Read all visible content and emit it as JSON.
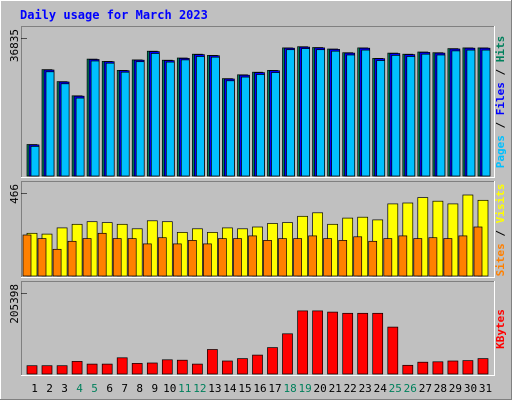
{
  "title": "Daily usage for March 2023",
  "colors": {
    "background": "#c0c0c0",
    "title": "#0000ff",
    "hits": "#00805c",
    "files": "#0000ff",
    "pages": "#00c0ff",
    "visits": "#ffff00",
    "sites": "#ff8000",
    "kbytes": "#ff0000",
    "weekend_label": "#00805c",
    "weekday_label": "#000000"
  },
  "chart_data": [
    {
      "type": "bar",
      "panel": "top",
      "ylabel": [
        "Pages",
        "Files",
        "Hits"
      ],
      "ytick": "36835",
      "ylim": [
        0,
        36835
      ],
      "categories": [
        "1",
        "2",
        "3",
        "4",
        "5",
        "6",
        "7",
        "8",
        "9",
        "10",
        "11",
        "12",
        "13",
        "14",
        "15",
        "16",
        "17",
        "18",
        "19",
        "20",
        "21",
        "22",
        "23",
        "24",
        "25",
        "26",
        "27",
        "28",
        "29",
        "30",
        "31"
      ],
      "series": [
        {
          "name": "Hits",
          "values": [
            8400,
            28400,
            25200,
            21400,
            31200,
            30600,
            28200,
            31000,
            33300,
            30900,
            31500,
            32500,
            32200,
            26000,
            27000,
            27700,
            28200,
            34200,
            34500,
            34300,
            33900,
            32900,
            34200,
            31400,
            32800,
            32500,
            33100,
            32900,
            34000,
            34200,
            34200
          ]
        },
        {
          "name": "Files",
          "values": [
            8300,
            28300,
            25100,
            21300,
            31100,
            30500,
            28100,
            30900,
            33200,
            30800,
            31400,
            32400,
            32100,
            25900,
            26900,
            27600,
            28100,
            34100,
            34400,
            34200,
            33800,
            32800,
            34100,
            31300,
            32700,
            32400,
            33000,
            32800,
            33900,
            34100,
            34100
          ]
        },
        {
          "name": "Pages",
          "values": [
            7900,
            27800,
            24600,
            20800,
            30700,
            30100,
            27700,
            30500,
            32700,
            30400,
            31000,
            31900,
            31700,
            25400,
            26400,
            27100,
            27600,
            33700,
            34000,
            33700,
            33300,
            32300,
            33600,
            30800,
            32200,
            31900,
            32500,
            32300,
            33400,
            33600,
            33600
          ]
        }
      ]
    },
    {
      "type": "bar",
      "panel": "middle",
      "ylabel": [
        "Sites",
        "Visits"
      ],
      "ytick": "466",
      "ylim": [
        0,
        466
      ],
      "categories": [
        "1",
        "2",
        "3",
        "4",
        "5",
        "6",
        "7",
        "8",
        "9",
        "10",
        "11",
        "12",
        "13",
        "14",
        "15",
        "16",
        "17",
        "18",
        "19",
        "20",
        "21",
        "22",
        "23",
        "24",
        "25",
        "26",
        "27",
        "28",
        "29",
        "30",
        "31"
      ],
      "series": [
        {
          "name": "Visits",
          "values": [
            240,
            235,
            270,
            290,
            305,
            300,
            290,
            265,
            310,
            305,
            245,
            265,
            245,
            270,
            265,
            275,
            295,
            300,
            335,
            355,
            290,
            325,
            330,
            315,
            405,
            410,
            440,
            420,
            405,
            455,
            425
          ]
        },
        {
          "name": "Sites",
          "values": [
            230,
            210,
            150,
            195,
            210,
            240,
            210,
            210,
            180,
            215,
            180,
            200,
            180,
            210,
            210,
            225,
            200,
            210,
            210,
            225,
            210,
            200,
            220,
            195,
            210,
            225,
            210,
            215,
            210,
            225,
            275
          ]
        }
      ]
    },
    {
      "type": "bar",
      "panel": "bottom",
      "ylabel": [
        "KBytes"
      ],
      "ytick": "205398",
      "ylim": [
        0,
        205398
      ],
      "categories": [
        "1",
        "2",
        "3",
        "4",
        "5",
        "6",
        "7",
        "8",
        "9",
        "10",
        "11",
        "12",
        "13",
        "14",
        "15",
        "16",
        "17",
        "18",
        "19",
        "20",
        "21",
        "22",
        "23",
        "24",
        "25",
        "26",
        "27",
        "28",
        "29",
        "30",
        "31"
      ],
      "series": [
        {
          "name": "KBytes",
          "values": [
            21000,
            21000,
            21000,
            32000,
            25000,
            25000,
            41000,
            27000,
            28000,
            36000,
            35000,
            25000,
            62000,
            33000,
            39000,
            48000,
            67000,
            102000,
            160000,
            160000,
            157000,
            154000,
            154000,
            154000,
            119000,
            22000,
            30000,
            31000,
            33000,
            34000,
            39000
          ]
        }
      ]
    }
  ],
  "weekend_days": [
    "4",
    "5",
    "11",
    "12",
    "18",
    "19",
    "25",
    "26"
  ]
}
